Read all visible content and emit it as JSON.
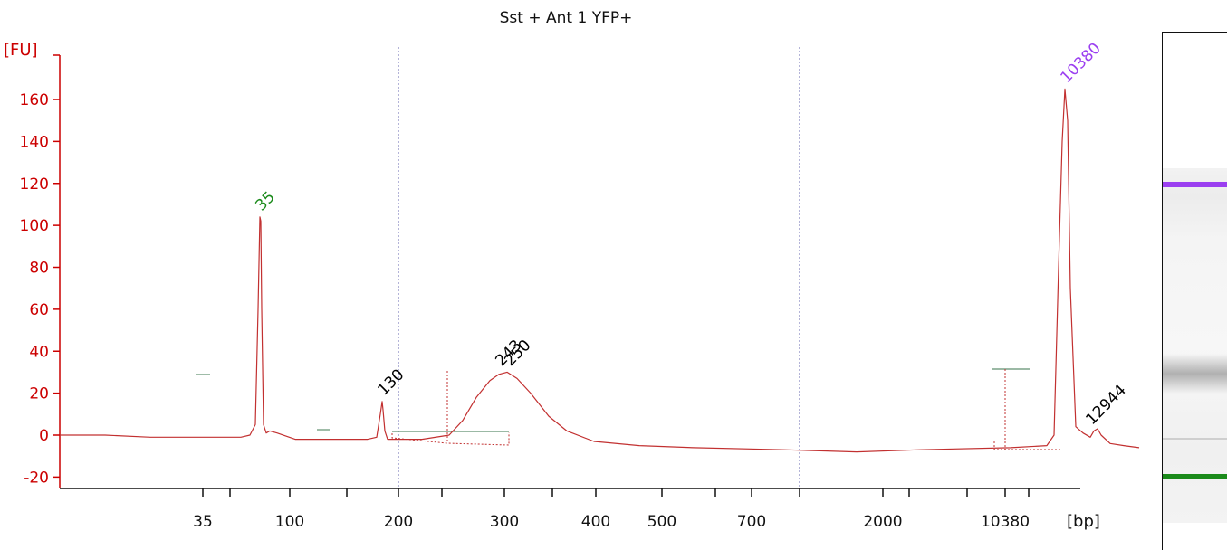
{
  "chart_data": {
    "type": "line",
    "title": "Sst + Ant 1 YFP+",
    "ylabel": "[FU]",
    "xlabel": "[bp]",
    "ylim": [
      -25,
      170
    ],
    "y_ticks": [
      -20,
      0,
      20,
      40,
      60,
      80,
      100,
      120,
      140,
      160
    ],
    "x_tick_labels": [
      "35",
      "100",
      "200",
      "300",
      "400",
      "500",
      "700",
      "2000",
      "10380"
    ],
    "grid": false,
    "series": [
      {
        "x": [
          0,
          50,
          100,
          150,
          200,
          210,
          216,
          219,
          221,
          222,
          223,
          225,
          228,
          232,
          240,
          260,
          300,
          340,
          350,
          354,
          356,
          357,
          359,
          362,
          370,
          400,
          430,
          445,
          460,
          475,
          485,
          494,
          505,
          520,
          540,
          560,
          590,
          640,
          700,
          800,
          880,
          950,
          1050,
          1090,
          1098,
          1103,
          1107,
          1110,
          1113,
          1116,
          1122,
          1130,
          1138,
          1142,
          1146,
          1150,
          1160,
          1175,
          1192
        ],
        "y": [
          0,
          0,
          -1,
          -1,
          -1,
          0,
          5,
          60,
          104,
          102,
          60,
          5,
          1,
          2,
          1,
          -2,
          -2,
          -2,
          -1,
          10,
          16,
          12,
          2,
          -2,
          -2,
          -2,
          0,
          7,
          18,
          26,
          29,
          30,
          27,
          20,
          9,
          2,
          -3,
          -5,
          -6,
          -7,
          -8,
          -7,
          -6,
          -5,
          0,
          80,
          140,
          165,
          150,
          70,
          4,
          1,
          -1,
          2,
          3,
          0,
          -4,
          -5,
          -6
        ]
      }
    ],
    "peak_labels": [
      {
        "text": "35",
        "x": 221,
        "y": 104,
        "color": "#1a8a1a"
      },
      {
        "text": "130",
        "x": 356,
        "y": 16,
        "color": "#000000"
      },
      {
        "text": "243",
        "x": 486,
        "y": 30,
        "color": "#000000"
      },
      {
        "text": "250",
        "x": 496,
        "y": 30,
        "color": "#000000"
      },
      {
        "text": "10380",
        "x": 1110,
        "y": 165,
        "color": "#9b3ff0"
      },
      {
        "text": "12944",
        "x": 1138,
        "y": 2,
        "color": "#000000"
      }
    ],
    "colors": {
      "trace": "#c23030",
      "y_axis": "#cc0000",
      "marker_line": "#5f8f6f",
      "ladder_lower": "#1a8a1a",
      "ladder_upper": "#9b3ff0"
    }
  },
  "gel": {
    "bands": [
      {
        "label": "upper-marker",
        "color": "#9b3ff0",
        "position": 0.045
      },
      {
        "label": "smear",
        "color": "#b0b0b0",
        "position": 0.58
      },
      {
        "label": "faint",
        "color": "#cfcfcf",
        "position": 0.76
      },
      {
        "label": "lower-marker",
        "color": "#1a8a1a",
        "position": 0.87
      }
    ]
  }
}
